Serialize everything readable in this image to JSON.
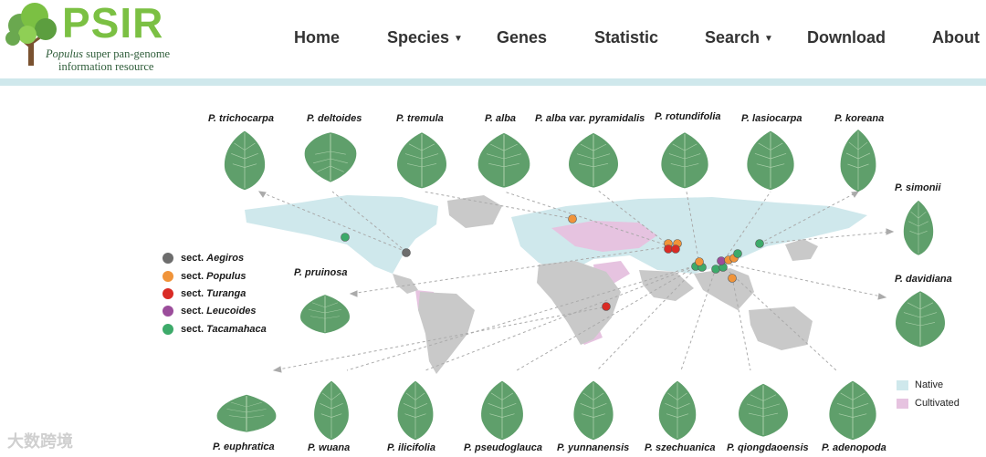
{
  "logo": {
    "title": "PSIR",
    "subtitle_italic": "Populus",
    "subtitle_rest": " super pan-genome",
    "subtitle_line2": "information resource"
  },
  "nav": {
    "home": "Home",
    "species": "Species",
    "genes": "Genes",
    "statistic": "Statistic",
    "search": "Search",
    "download": "Download",
    "about": "About",
    "caret": "▼"
  },
  "species_top": [
    "P. trichocarpa",
    "P. deltoides",
    "P. tremula",
    "P. alba",
    "P. alba var. pyramidalis",
    "P. rotundifolia",
    "P. lasiocarpa",
    "P. koreana"
  ],
  "species_right": [
    "P. simonii",
    "P. davidiana"
  ],
  "species_left": [
    "P. pruinosa"
  ],
  "species_bottom": [
    "P. euphratica",
    "P. wuana",
    "P. ilicifolia",
    "P. pseudoglauca",
    "P. yunnanensis",
    "P. szechuanica",
    "P. qiongdaoensis",
    "P. adenopoda"
  ],
  "legend": {
    "sections": [
      {
        "prefix": "sect. ",
        "name": "Aegiros",
        "color": "#6d6d6d"
      },
      {
        "prefix": "sect. ",
        "name": "Populus",
        "color": "#f0943a"
      },
      {
        "prefix": "sect. ",
        "name": "Turanga",
        "color": "#d92b25"
      },
      {
        "prefix": "sect. ",
        "name": "Leucoides",
        "color": "#9b4d9b"
      },
      {
        "prefix": "sect. ",
        "name": "Tacamahaca",
        "color": "#3daa6a"
      }
    ],
    "native": "Native",
    "cultivated": "Cultivated",
    "native_color": "#cfe8ec",
    "cultivated_color": "#e6c3e0"
  },
  "watermark": "大数跨境",
  "colors": {
    "brand_green": "#7bc043",
    "leaf_green": "#5f9f6b",
    "map_gray": "#c9c9c9"
  }
}
